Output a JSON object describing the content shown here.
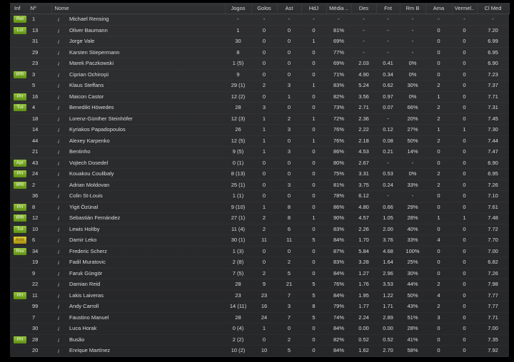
{
  "colors": {
    "badge_green": "#7fae1e",
    "badge_yellow": "#c9b31b",
    "background": "#2a2b2d",
    "text": "#dcdcdc"
  },
  "columns": [
    "Inf",
    "Nº",
    "Nome",
    "Jogos",
    "Golos",
    "Ast",
    "HdJ",
    "Média ..",
    "Des",
    "Fnt",
    "Rm B",
    "Ama",
    "Vermel..",
    "Cl Med"
  ],
  "rows": [
    {
      "inf": "Ret",
      "inf_color": "green",
      "num": "1",
      "name": "Michael Rensing",
      "jogos": "-",
      "golos": "-",
      "ast": "-",
      "hdj": "-",
      "media": "-",
      "des": "-",
      "fnt": "-",
      "rmb": "-",
      "ama": "-",
      "verm": "-",
      "clmed": "-"
    },
    {
      "inf": "Lst",
      "inf_color": "green",
      "num": "13",
      "name": "Oliver Baumann",
      "jogos": "1",
      "golos": "0",
      "ast": "0",
      "hdj": "0",
      "media": "81%",
      "des": "-",
      "fnt": "-",
      "rmb": "-",
      "ama": "0",
      "verm": "0",
      "clmed": "7.20"
    },
    {
      "inf": "",
      "num": "31",
      "name": "Jorge Vale",
      "jogos": "30",
      "golos": "0",
      "ast": "0",
      "hdj": "1",
      "media": "69%",
      "des": "-",
      "fnt": "-",
      "rmb": "-",
      "ama": "0",
      "verm": "0",
      "clmed": "6.99"
    },
    {
      "inf": "",
      "num": "29",
      "name": "Karsten Stiepermann",
      "jogos": "8",
      "golos": "0",
      "ast": "0",
      "hdj": "0",
      "media": "77%",
      "des": "-",
      "fnt": "-",
      "rmb": "-",
      "ama": "0",
      "verm": "0",
      "clmed": "6.95"
    },
    {
      "inf": "",
      "num": "23",
      "name": "Marek Paczkowski",
      "jogos": "1 (5)",
      "golos": "0",
      "ast": "0",
      "hdj": "0",
      "media": "69%",
      "des": "2.03",
      "fnt": "0.41",
      "rmb": "0%",
      "ama": "0",
      "verm": "0",
      "clmed": "6.90"
    },
    {
      "inf": "IPR",
      "inf_color": "green",
      "num": "3",
      "name": "Ciprian Ochiroşii",
      "jogos": "9",
      "golos": "0",
      "ast": "0",
      "hdj": "0",
      "media": "71%",
      "des": "4.90",
      "fnt": "0.34",
      "rmb": "0%",
      "ama": "0",
      "verm": "0",
      "clmed": "7.23"
    },
    {
      "inf": "",
      "num": "5",
      "name": "Klaus Steffans",
      "jogos": "29 (1)",
      "golos": "2",
      "ast": "3",
      "hdj": "1",
      "media": "83%",
      "des": "5.24",
      "fnt": "0.62",
      "rmb": "30%",
      "ama": "2",
      "verm": "0",
      "clmed": "7.37"
    },
    {
      "inf": "Prt",
      "inf_color": "green",
      "num": "16",
      "name": "Maicon Castor",
      "jogos": "12 (2)",
      "golos": "0",
      "ast": "1",
      "hdj": "0",
      "media": "82%",
      "des": "3.56",
      "fnt": "0.97",
      "rmb": "0%",
      "ama": "1",
      "verm": "0",
      "clmed": "7.71"
    },
    {
      "inf": "Tut",
      "inf_color": "green",
      "num": "4",
      "name": "Benedikt Höwedes",
      "jogos": "28",
      "golos": "3",
      "ast": "0",
      "hdj": "0",
      "media": "73%",
      "des": "2.71",
      "fnt": "0.07",
      "rmb": "66%",
      "ama": "2",
      "verm": "0",
      "clmed": "7.31"
    },
    {
      "inf": "",
      "num": "18",
      "name": "Lorenz-Günther Steinhöfer",
      "jogos": "12 (3)",
      "golos": "1",
      "ast": "2",
      "hdj": "1",
      "media": "72%",
      "des": "2.36",
      "fnt": "-",
      "rmb": "20%",
      "ama": "2",
      "verm": "0",
      "clmed": "7.45"
    },
    {
      "inf": "",
      "num": "14",
      "name": "Kyriakos Papadopoulos",
      "jogos": "26",
      "golos": "1",
      "ast": "3",
      "hdj": "0",
      "media": "76%",
      "des": "2.22",
      "fnt": "0.12",
      "rmb": "27%",
      "ama": "1",
      "verm": "1",
      "clmed": "7.30"
    },
    {
      "inf": "",
      "num": "44",
      "name": "Alexey Karpenko",
      "jogos": "12 (5)",
      "golos": "1",
      "ast": "0",
      "hdj": "1",
      "media": "76%",
      "des": "2.18",
      "fnt": "0.08",
      "rmb": "50%",
      "ama": "2",
      "verm": "0",
      "clmed": "7.44"
    },
    {
      "inf": "",
      "num": "21",
      "name": "Bentinho",
      "jogos": "9 (5)",
      "golos": "1",
      "ast": "3",
      "hdj": "0",
      "media": "86%",
      "des": "4.53",
      "fnt": "0.21",
      "rmb": "14%",
      "ama": "0",
      "verm": "0",
      "clmed": "7.47"
    },
    {
      "inf": "Apr",
      "inf_color": "green",
      "num": "43",
      "name": "Vojtech Dosedel",
      "jogos": "0 (1)",
      "golos": "0",
      "ast": "0",
      "hdj": "0",
      "media": "80%",
      "des": "2.67",
      "fnt": "-",
      "rmb": "-",
      "ama": "0",
      "verm": "0",
      "clmed": "6.90"
    },
    {
      "inf": "Prt",
      "inf_color": "green",
      "num": "24",
      "name": "Kouakou Coulibaly",
      "jogos": "8 (13)",
      "golos": "0",
      "ast": "0",
      "hdj": "0",
      "media": "75%",
      "des": "3.31",
      "fnt": "0.53",
      "rmb": "0%",
      "ama": "2",
      "verm": "0",
      "clmed": "6.95"
    },
    {
      "inf": "IPR",
      "inf_color": "green",
      "num": "2",
      "name": "Adrian Moldovan",
      "jogos": "25 (1)",
      "golos": "0",
      "ast": "3",
      "hdj": "0",
      "media": "81%",
      "des": "3.75",
      "fnt": "0.24",
      "rmb": "33%",
      "ama": "2",
      "verm": "0",
      "clmed": "7.26"
    },
    {
      "inf": "",
      "num": "36",
      "name": "Colin St-Louis",
      "jogos": "1 (1)",
      "golos": "0",
      "ast": "0",
      "hdj": "0",
      "media": "78%",
      "des": "6.12",
      "fnt": "-",
      "rmb": "-",
      "ama": "0",
      "verm": "0",
      "clmed": "7.10"
    },
    {
      "inf": "Prt",
      "inf_color": "green",
      "num": "8",
      "name": "Yigit Özünal",
      "jogos": "9 (10)",
      "golos": "1",
      "ast": "8",
      "hdj": "0",
      "media": "86%",
      "des": "4.80",
      "fnt": "0.66",
      "rmb": "29%",
      "ama": "0",
      "verm": "0",
      "clmed": "7.61"
    },
    {
      "inf": "IPR",
      "inf_color": "green",
      "num": "12",
      "name": "Sebastián Fernández",
      "jogos": "27 (1)",
      "golos": "2",
      "ast": "8",
      "hdj": "1",
      "media": "90%",
      "des": "4.57",
      "fnt": "1.05",
      "rmb": "28%",
      "ama": "1",
      "verm": "1",
      "clmed": "7.48"
    },
    {
      "inf": "Tut",
      "inf_color": "green",
      "num": "10",
      "name": "Lewis Holtby",
      "jogos": "11 (4)",
      "golos": "2",
      "ast": "6",
      "hdj": "0",
      "media": "83%",
      "des": "2.26",
      "fnt": "2.00",
      "rmb": "40%",
      "ama": "0",
      "verm": "0",
      "clmed": "7.72"
    },
    {
      "inf": "Amr",
      "inf_color": "yellow",
      "num": "6",
      "name": "Damir Leko",
      "jogos": "30 (1)",
      "golos": "11",
      "ast": "11",
      "hdj": "5",
      "media": "84%",
      "des": "1.70",
      "fnt": "3.76",
      "rmb": "33%",
      "ama": "4",
      "verm": "0",
      "clmed": "7.70"
    },
    {
      "inf": "Rsv",
      "inf_color": "green",
      "num": "34",
      "name": "Frederic Scherz",
      "jogos": "1 (3)",
      "golos": "0",
      "ast": "0",
      "hdj": "0",
      "media": "87%",
      "des": "5.84",
      "fnt": "4.68",
      "rmb": "100%",
      "ama": "0",
      "verm": "0",
      "clmed": "7.00"
    },
    {
      "inf": "",
      "num": "19",
      "name": "Fadil Muratovic",
      "jogos": "2 (8)",
      "golos": "0",
      "ast": "2",
      "hdj": "0",
      "media": "83%",
      "des": "3.28",
      "fnt": "1.64",
      "rmb": "25%",
      "ama": "0",
      "verm": "0",
      "clmed": "6.82"
    },
    {
      "inf": "",
      "num": "9",
      "name": "Faruk Güngör",
      "jogos": "7 (5)",
      "golos": "2",
      "ast": "5",
      "hdj": "0",
      "media": "84%",
      "des": "1.27",
      "fnt": "2.96",
      "rmb": "30%",
      "ama": "0",
      "verm": "0",
      "clmed": "7.26"
    },
    {
      "inf": "",
      "num": "22",
      "name": "Damian Reid",
      "jogos": "28",
      "golos": "9",
      "ast": "21",
      "hdj": "5",
      "media": "76%",
      "des": "1.76",
      "fnt": "3.53",
      "rmb": "44%",
      "ama": "2",
      "verm": "0",
      "clmed": "7.98"
    },
    {
      "inf": "Prt",
      "inf_color": "green",
      "num": "11",
      "name": "Lakis Laiveras",
      "jogos": "23",
      "golos": "23",
      "ast": "7",
      "hdj": "5",
      "media": "84%",
      "des": "1.95",
      "fnt": "1.22",
      "rmb": "50%",
      "ama": "4",
      "verm": "0",
      "clmed": "7.77"
    },
    {
      "inf": "",
      "num": "99",
      "name": "Andy Carroll",
      "jogos": "14 (11)",
      "golos": "16",
      "ast": "3",
      "hdj": "8",
      "media": "79%",
      "des": "1.77",
      "fnt": "1.71",
      "rmb": "43%",
      "ama": "2",
      "verm": "0",
      "clmed": "7.77"
    },
    {
      "inf": "",
      "num": "7",
      "name": "Faustino Manuel",
      "jogos": "28",
      "golos": "24",
      "ast": "7",
      "hdj": "5",
      "media": "74%",
      "des": "2.24",
      "fnt": "2.89",
      "rmb": "51%",
      "ama": "3",
      "verm": "0",
      "clmed": "7.71"
    },
    {
      "inf": "",
      "num": "30",
      "name": "Luca Horak",
      "jogos": "0 (4)",
      "golos": "1",
      "ast": "0",
      "hdj": "0",
      "media": "84%",
      "des": "0.00",
      "fnt": "0.00",
      "rmb": "28%",
      "ama": "0",
      "verm": "0",
      "clmed": "7.00"
    },
    {
      "inf": "Prt",
      "inf_color": "green",
      "num": "28",
      "name": "Busão",
      "jogos": "2 (2)",
      "golos": "0",
      "ast": "2",
      "hdj": "0",
      "media": "82%",
      "des": "0.52",
      "fnt": "0.52",
      "rmb": "41%",
      "ama": "0",
      "verm": "0",
      "clmed": "7.35"
    },
    {
      "inf": "",
      "num": "20",
      "name": "Enrique Martínez",
      "jogos": "10 (2)",
      "golos": "10",
      "ast": "5",
      "hdj": "0",
      "media": "84%",
      "des": "1.62",
      "fnt": "2.70",
      "rmb": "58%",
      "ama": "0",
      "verm": "0",
      "clmed": "7.92"
    }
  ],
  "info_icon_glyph": "¡"
}
